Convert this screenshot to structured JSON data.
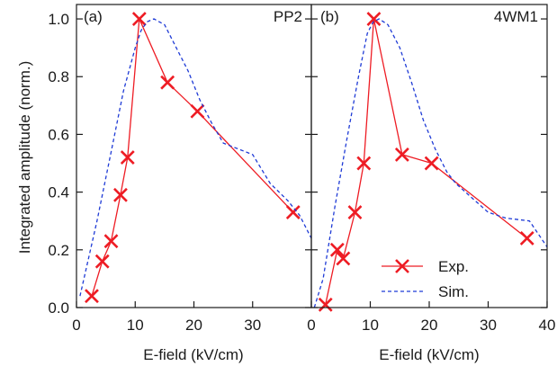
{
  "figure": {
    "ylabel": "Integrated amplitude (norm.)",
    "legend": {
      "position": "bottom-right of panel (b)",
      "entries": [
        {
          "label": "Exp.",
          "style": "red solid line with x markers"
        },
        {
          "label": "Sim.",
          "style": "blue dashed line"
        }
      ]
    },
    "colors": {
      "exp": "#ee1c24",
      "sim": "#1f3bd6",
      "axes": "#1a1a1a"
    }
  },
  "chart_data": [
    {
      "type": "line",
      "panel_label": "(a)",
      "panel_id": "PP2",
      "xlabel": "E-field (kV/cm)",
      "ylabel": "Integrated amplitude (norm.)",
      "xlim": [
        0,
        40
      ],
      "ylim": [
        0,
        1.05
      ],
      "xticks": [
        "0",
        "10",
        "20",
        "30"
      ],
      "yticks": [
        "0.0",
        "0.2",
        "0.4",
        "0.6",
        "0.8",
        "1.0"
      ],
      "series": [
        {
          "name": "Exp.",
          "style": "marker-line",
          "color": "#ee1c24",
          "points": [
            [
              2.6,
              0.04
            ],
            [
              4.4,
              0.16
            ],
            [
              5.9,
              0.23
            ],
            [
              7.5,
              0.39
            ],
            [
              8.7,
              0.52
            ],
            [
              10.7,
              1.0
            ],
            [
              15.5,
              0.78
            ],
            [
              20.6,
              0.68
            ],
            [
              36.9,
              0.33
            ]
          ]
        },
        {
          "name": "Sim.",
          "style": "dashed",
          "color": "#1f3bd6",
          "points": [
            [
              0.6,
              0.04
            ],
            [
              3.5,
              0.3
            ],
            [
              6.0,
              0.55
            ],
            [
              8.0,
              0.75
            ],
            [
              10.0,
              0.9
            ],
            [
              11.0,
              0.96
            ],
            [
              12.0,
              0.99
            ],
            [
              13.2,
              1.0
            ],
            [
              15.0,
              0.98
            ],
            [
              17.0,
              0.9
            ],
            [
              19.0,
              0.82
            ],
            [
              21.0,
              0.72
            ],
            [
              23.0,
              0.64
            ],
            [
              25.0,
              0.57
            ],
            [
              30.0,
              0.53
            ],
            [
              33.0,
              0.43
            ],
            [
              36.0,
              0.37
            ],
            [
              38.0,
              0.32
            ],
            [
              40.0,
              0.24
            ]
          ]
        }
      ]
    },
    {
      "type": "line",
      "panel_label": "(b)",
      "panel_id": "4WM1",
      "xlabel": "E-field (kV/cm)",
      "xlim": [
        0,
        40
      ],
      "ylim": [
        0,
        1.05
      ],
      "xticks": [
        "0",
        "10",
        "20",
        "30",
        "40"
      ],
      "series": [
        {
          "name": "Exp.",
          "style": "marker-line",
          "color": "#ee1c24",
          "points": [
            [
              2.4,
              0.01
            ],
            [
              4.4,
              0.2
            ],
            [
              5.4,
              0.17
            ],
            [
              7.4,
              0.33
            ],
            [
              8.9,
              0.5
            ],
            [
              10.6,
              1.0
            ],
            [
              15.4,
              0.53
            ],
            [
              20.4,
              0.5
            ],
            [
              36.6,
              0.24
            ]
          ]
        },
        {
          "name": "Sim.",
          "style": "dashed",
          "color": "#1f3bd6",
          "points": [
            [
              0.5,
              0.0
            ],
            [
              2.0,
              0.1
            ],
            [
              4.0,
              0.35
            ],
            [
              6.0,
              0.58
            ],
            [
              8.0,
              0.8
            ],
            [
              9.5,
              0.95
            ],
            [
              10.5,
              0.99
            ],
            [
              11.5,
              1.0
            ],
            [
              13.0,
              0.98
            ],
            [
              15.0,
              0.9
            ],
            [
              17.0,
              0.78
            ],
            [
              19.0,
              0.65
            ],
            [
              21.0,
              0.55
            ],
            [
              23.0,
              0.47
            ],
            [
              24.5,
              0.43
            ],
            [
              30.0,
              0.33
            ],
            [
              33.0,
              0.31
            ],
            [
              37.0,
              0.3
            ],
            [
              40.0,
              0.21
            ]
          ]
        }
      ]
    }
  ]
}
